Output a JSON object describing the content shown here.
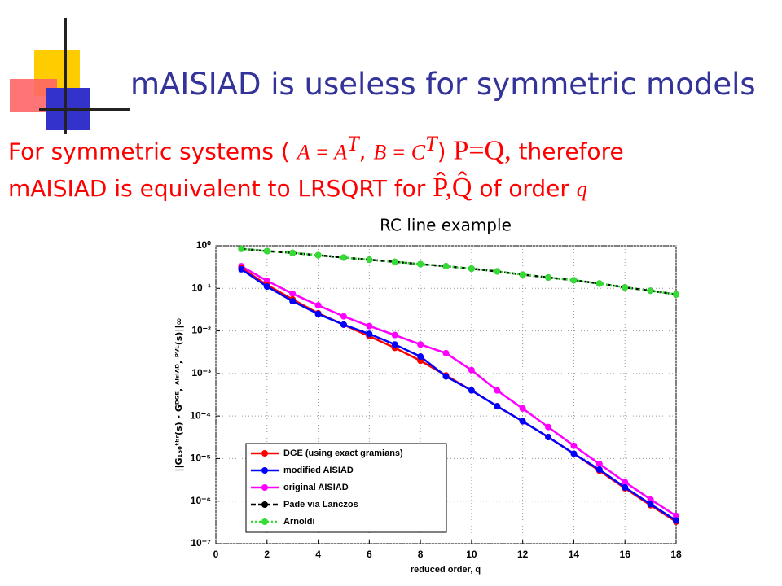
{
  "slide": {
    "title": "mAISIAD is useless for symmetric models",
    "line1": [
      "For symmetric systems (",
      "A = A",
      "T",
      ",",
      "B = C",
      "T",
      ")",
      "P=Q,",
      "therefore"
    ],
    "line2": [
      "mAISIAD is equivalent to LRSQRT for",
      "P̂,Q̂",
      "of order",
      "q"
    ]
  },
  "chart_data": {
    "type": "line",
    "title": "RC line example",
    "xlabel": "reduced order, q",
    "ylabel": "||G₁₅₀ᵗᵇʳ(s) - Gᴰᴳᴱ, ᴬᴵˢᴵᴬᴰ, ᴾⱽᴸ(s)||∞",
    "log_y": true,
    "grid": true,
    "legend": "lower left",
    "x": [
      1,
      2,
      3,
      4,
      5,
      6,
      7,
      8,
      9,
      10,
      11,
      12,
      13,
      14,
      15,
      16,
      17,
      18
    ],
    "xlim": [
      0,
      18
    ],
    "xticks": [
      0,
      2,
      4,
      6,
      8,
      10,
      12,
      14,
      16,
      18
    ],
    "ylim": [
      1e-07,
      1
    ],
    "yticks": [
      {
        "value": 1e-07,
        "label": "10⁻⁷"
      },
      {
        "value": 1e-06,
        "label": "10⁻⁶"
      },
      {
        "value": 1e-05,
        "label": "10⁻⁵"
      },
      {
        "value": 0.0001,
        "label": "10⁻⁴"
      },
      {
        "value": 0.001,
        "label": "10⁻³"
      },
      {
        "value": 0.01,
        "label": "10⁻²"
      },
      {
        "value": 0.1,
        "label": "10⁻¹"
      },
      {
        "value": 1,
        "label": "10⁰"
      }
    ],
    "series": [
      {
        "name": "DGE (using exact gramians)",
        "color": "#ff0000",
        "linestyle": "solid",
        "values": [
          0.3,
          0.12,
          0.055,
          0.026,
          0.014,
          0.0075,
          0.004,
          0.002,
          0.0009,
          0.0004,
          0.00017,
          7.5e-05,
          3.2e-05,
          1.3e-05,
          5.2e-06,
          2e-06,
          8e-07,
          3.3e-07
        ]
      },
      {
        "name": "modified AISIAD",
        "color": "#0000ff",
        "linestyle": "solid",
        "values": [
          0.28,
          0.11,
          0.05,
          0.025,
          0.014,
          0.0085,
          0.0048,
          0.0025,
          0.00085,
          0.0004,
          0.00017,
          7.5e-05,
          3.2e-05,
          1.3e-05,
          5.5e-06,
          2.1e-06,
          8.5e-07,
          3.5e-07
        ]
      },
      {
        "name": "original AISIAD",
        "color": "#ff00ff",
        "linestyle": "solid",
        "values": [
          0.33,
          0.15,
          0.075,
          0.04,
          0.022,
          0.013,
          0.008,
          0.0048,
          0.003,
          0.0012,
          0.0004,
          0.00015,
          5.5e-05,
          2e-05,
          7.5e-06,
          2.8e-06,
          1.1e-06,
          4.5e-07
        ]
      },
      {
        "name": "Pade via Lanczos",
        "color": "#000000",
        "linestyle": "dashed",
        "values": [
          0.85,
          0.75,
          0.68,
          0.6,
          0.53,
          0.47,
          0.42,
          0.37,
          0.33,
          0.29,
          0.25,
          0.21,
          0.18,
          0.155,
          0.13,
          0.105,
          0.088,
          0.072
        ]
      },
      {
        "name": "Arnoldi",
        "color": "#33dd33",
        "linestyle": "dotted",
        "values": [
          0.85,
          0.75,
          0.68,
          0.6,
          0.53,
          0.47,
          0.42,
          0.37,
          0.33,
          0.29,
          0.25,
          0.21,
          0.18,
          0.155,
          0.13,
          0.105,
          0.088,
          0.072
        ]
      }
    ]
  }
}
